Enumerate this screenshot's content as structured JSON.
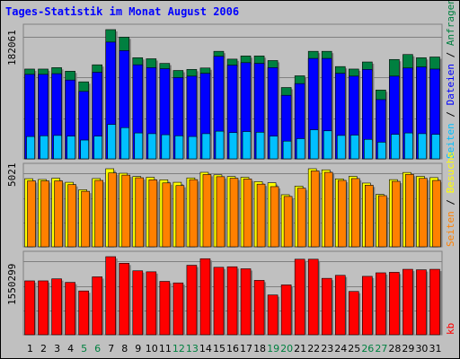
{
  "title": "Tages-Statistik im Monat August 2006",
  "chart_data": [
    {
      "type": "bar",
      "panel": "top",
      "max_label": "182061",
      "legend": [
        "Seiten",
        "Dateien",
        "Anfragen"
      ],
      "legend_colors": [
        "#00c0ff",
        "#0000ff",
        "#008040"
      ],
      "series": [
        {
          "name": "Anfragen",
          "color": "#008040",
          "values": [
            126500,
            126500,
            128500,
            123500,
            108500,
            132500,
            182061,
            171500,
            142500,
            141000,
            134500,
            124500,
            126000,
            128000,
            151500,
            140500,
            145000,
            145000,
            138500,
            100500,
            117000,
            151500,
            151500,
            130000,
            126500,
            136500,
            97000,
            140000,
            147000,
            142500,
            143500
          ]
        },
        {
          "name": "Dateien",
          "color": "#0000ff",
          "values": [
            119000,
            119000,
            120000,
            111000,
            95000,
            122000,
            164500,
            152500,
            132500,
            128500,
            127000,
            114500,
            116500,
            120500,
            144500,
            132000,
            135500,
            134500,
            128500,
            89500,
            106000,
            141500,
            141500,
            120500,
            116500,
            126000,
            83500,
            116500,
            128000,
            129500,
            126500
          ]
        },
        {
          "name": "Seiten",
          "color": "#00c0ff",
          "values": [
            31500,
            32500,
            33000,
            32000,
            26500,
            32000,
            48500,
            44000,
            36500,
            35500,
            34000,
            32500,
            31500,
            35500,
            39000,
            37000,
            38500,
            37500,
            32000,
            25000,
            28500,
            41000,
            39500,
            33000,
            33500,
            27500,
            23500,
            34500,
            36500,
            35500,
            34500
          ]
        }
      ]
    },
    {
      "type": "bar",
      "panel": "middle",
      "max_label": "5021",
      "legend": [
        "Seiten",
        "Besuche"
      ],
      "legend_colors": [
        "#ff8000",
        "#ffff00"
      ],
      "series": [
        {
          "name": "Besuche",
          "color": "#ffff00",
          "values": [
            4380,
            4330,
            4410,
            4150,
            3670,
            4390,
            5021,
            4730,
            4520,
            4470,
            4310,
            4150,
            4430,
            4790,
            4630,
            4520,
            4470,
            4190,
            4120,
            3350,
            3900,
            5021,
            4950,
            4370,
            4530,
            4100,
            3370,
            4320,
            4780,
            4530,
            4450
          ]
        },
        {
          "name": "Seiten",
          "color": "#ff8000",
          "values": [
            4240,
            4240,
            4240,
            4000,
            3570,
            4270,
            4750,
            4610,
            4440,
            4310,
            4110,
            3940,
            4320,
            4650,
            4510,
            4410,
            4360,
            4030,
            3870,
            3240,
            3770,
            4880,
            4790,
            4270,
            4390,
            3960,
            3290,
            4210,
            4660,
            4400,
            4270
          ]
        }
      ]
    },
    {
      "type": "bar",
      "panel": "bottom",
      "max_label": "1550299",
      "legend": [
        "kb"
      ],
      "legend_colors": [
        "#ff0000"
      ],
      "series": [
        {
          "name": "kb",
          "color": "#ff0000",
          "values": [
            1070000,
            1070000,
            1110000,
            1040000,
            870000,
            1150000,
            1550299,
            1420000,
            1270000,
            1250000,
            1060000,
            1030000,
            1380000,
            1510000,
            1340000,
            1350000,
            1310000,
            1080000,
            790000,
            990000,
            1500000,
            1500000,
            1120000,
            1180000,
            860000,
            1160000,
            1230000,
            1240000,
            1300000,
            1290000,
            1300000
          ]
        }
      ]
    }
  ],
  "days": [
    "1",
    "2",
    "3",
    "4",
    "5",
    "6",
    "7",
    "8",
    "9",
    "10",
    "11",
    "12",
    "13",
    "14",
    "15",
    "16",
    "17",
    "18",
    "19",
    "20",
    "21",
    "22",
    "23",
    "24",
    "25",
    "26",
    "27",
    "28",
    "29",
    "30",
    "31"
  ],
  "weekend_days": [
    "5",
    "6",
    "12",
    "13",
    "19",
    "20",
    "26",
    "27"
  ],
  "colors": {
    "day_normal": "#000000",
    "day_weekend": "#008040",
    "title": "#0000ff"
  }
}
